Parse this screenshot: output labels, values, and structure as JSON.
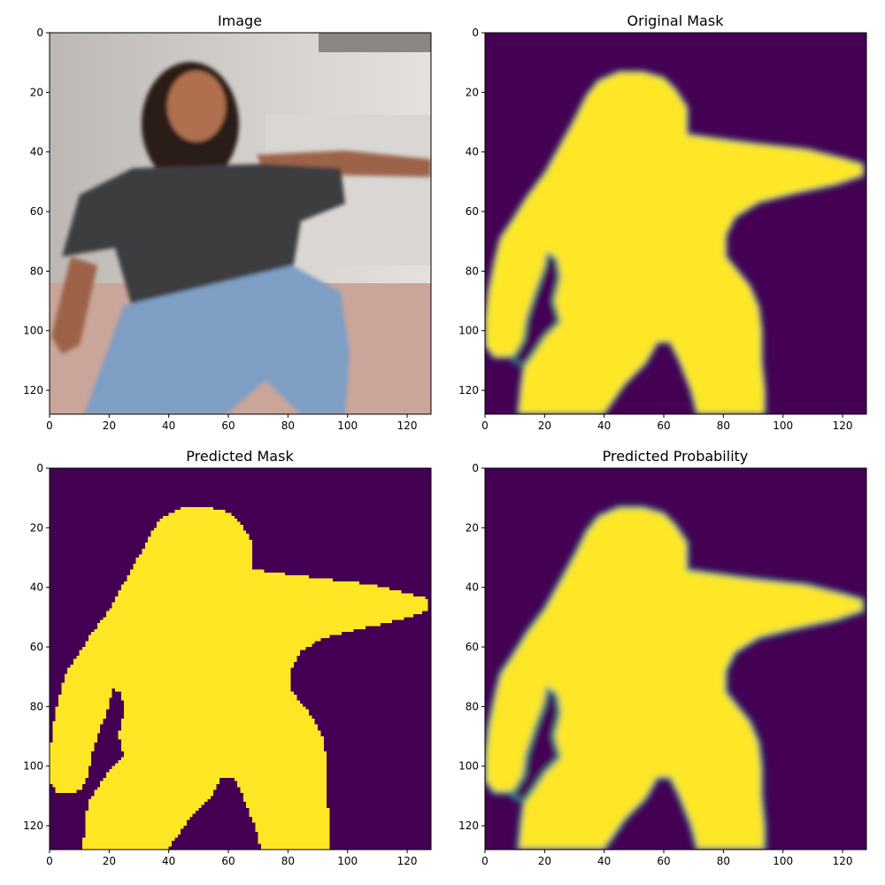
{
  "chart_data": [
    {
      "type": "image",
      "title": "Image",
      "xlim": [
        0,
        128
      ],
      "ylim": [
        128,
        0
      ],
      "xticks": [
        0,
        20,
        40,
        60,
        80,
        100,
        120
      ],
      "yticks": [
        0,
        20,
        40,
        60,
        80,
        100,
        120
      ],
      "content": "photo"
    },
    {
      "type": "heatmap",
      "title": "Original Mask",
      "xlim": [
        0,
        128
      ],
      "ylim": [
        128,
        0
      ],
      "xticks": [
        0,
        20,
        40,
        60,
        80,
        100,
        120
      ],
      "yticks": [
        0,
        20,
        40,
        60,
        80,
        100,
        120
      ],
      "colormap": "viridis",
      "colors": {
        "background": "#440154",
        "foreground": "#fde725",
        "edge": "#21918c"
      }
    },
    {
      "type": "heatmap",
      "title": "Predicted Mask",
      "xlim": [
        0,
        128
      ],
      "ylim": [
        128,
        0
      ],
      "xticks": [
        0,
        20,
        40,
        60,
        80,
        100,
        120
      ],
      "yticks": [
        0,
        20,
        40,
        60,
        80,
        100,
        120
      ],
      "colormap": "viridis",
      "colors": {
        "background": "#440154",
        "foreground": "#fde725"
      }
    },
    {
      "type": "heatmap",
      "title": "Predicted Probability",
      "xlim": [
        0,
        128
      ],
      "ylim": [
        128,
        0
      ],
      "xticks": [
        0,
        20,
        40,
        60,
        80,
        100,
        120
      ],
      "yticks": [
        0,
        20,
        40,
        60,
        80,
        100,
        120
      ],
      "colormap": "viridis",
      "colors": {
        "background": "#440154",
        "foreground": "#fde725",
        "edge": "#21918c"
      }
    }
  ],
  "silhouette": [
    [
      11,
      128
    ],
    [
      12,
      118
    ],
    [
      13,
      111
    ],
    [
      13,
      107
    ],
    [
      8,
      109
    ],
    [
      3,
      109
    ],
    [
      0,
      105
    ],
    [
      0,
      96
    ],
    [
      1,
      87
    ],
    [
      3,
      77
    ],
    [
      5,
      69
    ],
    [
      9,
      63
    ],
    [
      14,
      55
    ],
    [
      20,
      47
    ],
    [
      25,
      38
    ],
    [
      30,
      29
    ],
    [
      34,
      21
    ],
    [
      38,
      16
    ],
    [
      45,
      13
    ],
    [
      53,
      13
    ],
    [
      60,
      15
    ],
    [
      64,
      19
    ],
    [
      68,
      25
    ],
    [
      68,
      34
    ],
    [
      75,
      35
    ],
    [
      90,
      37
    ],
    [
      108,
      39
    ],
    [
      120,
      42
    ],
    [
      127,
      44
    ],
    [
      127,
      48
    ],
    [
      118,
      51
    ],
    [
      104,
      54
    ],
    [
      92,
      57
    ],
    [
      84,
      62
    ],
    [
      81,
      68
    ],
    [
      81,
      75
    ],
    [
      85,
      80
    ],
    [
      89,
      85
    ],
    [
      92,
      92
    ],
    [
      93,
      100
    ],
    [
      93,
      110
    ],
    [
      94,
      120
    ],
    [
      94,
      128
    ],
    [
      71,
      128
    ],
    [
      69,
      120
    ],
    [
      65,
      110
    ],
    [
      62,
      104
    ],
    [
      58,
      104
    ],
    [
      54,
      111
    ],
    [
      47,
      118
    ],
    [
      40,
      128
    ]
  ],
  "hole": [
    [
      9,
      110
    ],
    [
      13,
      103
    ],
    [
      14,
      96
    ],
    [
      17,
      87
    ],
    [
      20,
      79
    ],
    [
      21,
      74
    ],
    [
      24,
      76
    ],
    [
      25,
      82
    ],
    [
      23,
      90
    ],
    [
      25,
      97
    ],
    [
      20,
      102
    ],
    [
      16,
      108
    ],
    [
      13,
      112
    ]
  ]
}
